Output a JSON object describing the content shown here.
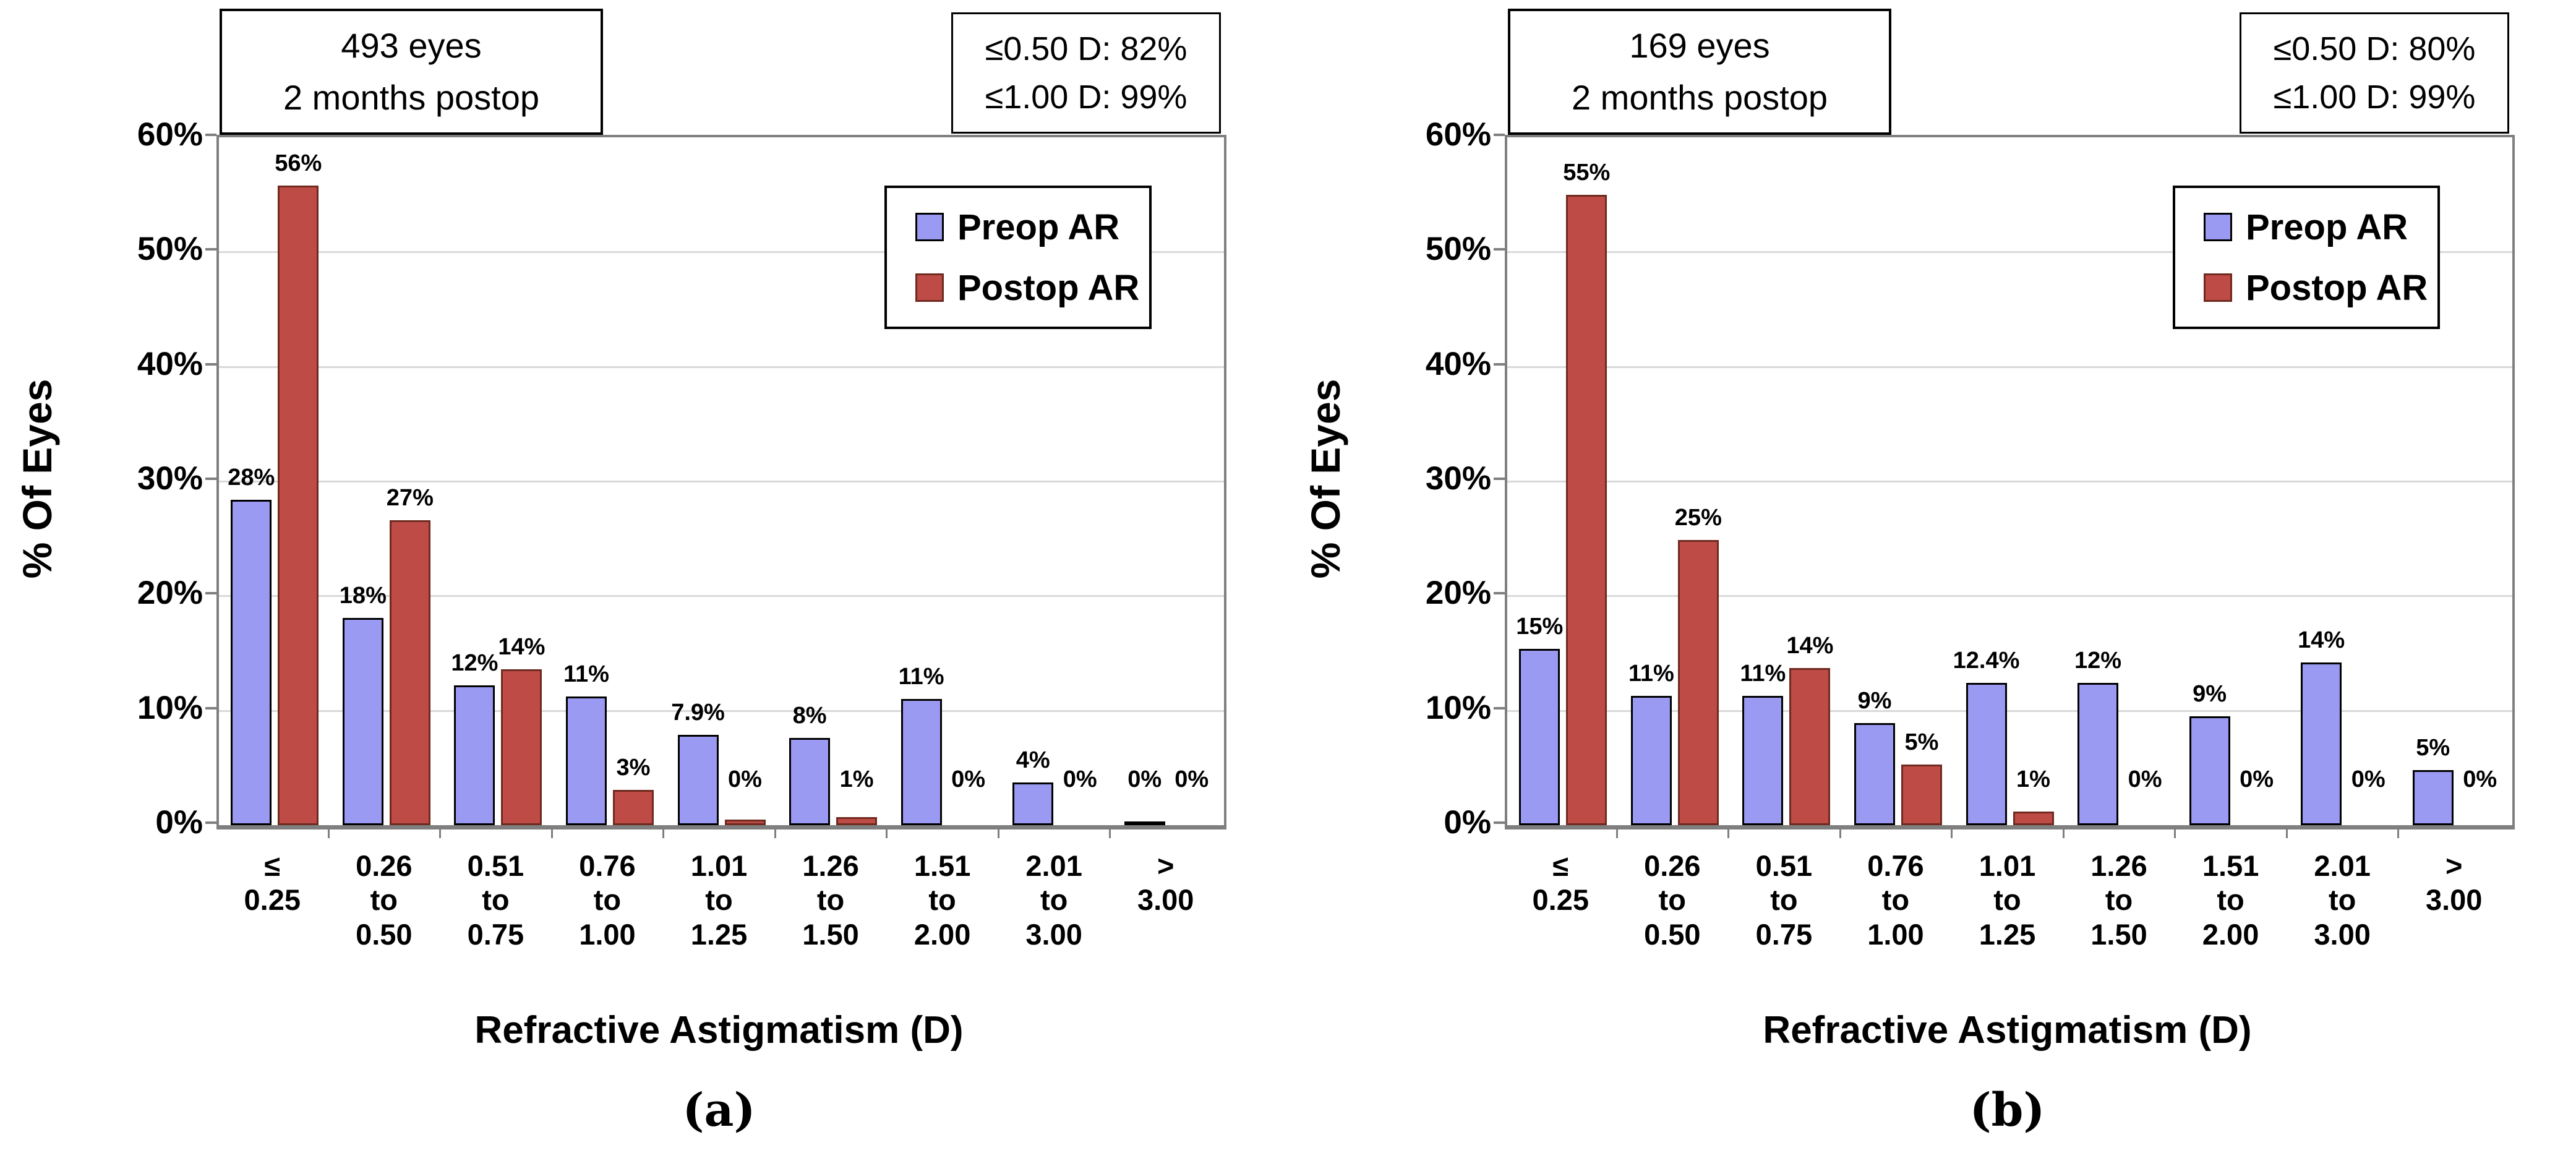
{
  "figure": {
    "y_axis_title": "% Of Eyes",
    "x_axis_title": "Refractive Astigmatism (D)",
    "legend": {
      "preop_label": "Preop AR",
      "postop_label": "Postop AR"
    },
    "colors": {
      "preop_fill": "#9a9af2",
      "preop_border": "#000000",
      "postop_fill": "#bf4b47",
      "postop_border": "#6e2a1f",
      "plot_border": "#7f7f7f",
      "gridline": "#d9d9d9"
    },
    "y_ticks": [
      {
        "value": 0,
        "label": "0%"
      },
      {
        "value": 10,
        "label": "10%"
      },
      {
        "value": 20,
        "label": "20%"
      },
      {
        "value": 30,
        "label": "30%"
      },
      {
        "value": 40,
        "label": "40%"
      },
      {
        "value": 50,
        "label": "50%"
      },
      {
        "value": 60,
        "label": "60%"
      }
    ]
  },
  "chart_data": [
    {
      "type": "bar",
      "panel": "a",
      "caption": "(a)",
      "title_box": [
        "493 eyes",
        "2 months postop"
      ],
      "stats_box": [
        "≤0.50 D: 82%",
        "≤1.00 D: 99%"
      ],
      "xlabel": "Refractive Astigmatism (D)",
      "ylabel": "% Of Eyes",
      "ylim": [
        0,
        60
      ],
      "grid": true,
      "legend_position": "top-right",
      "categories": [
        "≤ 0.25",
        "0.26 to 0.50",
        "0.51 to 0.75",
        "0.76 to 1.00",
        "1.01 to 1.25",
        "1.26 to 1.50",
        "1.51 to 2.00",
        "2.01 to 3.00",
        "> 3.00"
      ],
      "category_lines": [
        [
          "≤",
          "0.25"
        ],
        [
          "0.26",
          "to",
          "0.50"
        ],
        [
          "0.51",
          "to",
          "0.75"
        ],
        [
          "0.76",
          "to",
          "1.00"
        ],
        [
          "1.01",
          "to",
          "1.25"
        ],
        [
          "1.26",
          "to",
          "1.50"
        ],
        [
          "1.51",
          "to",
          "2.00"
        ],
        [
          "2.01",
          "to",
          "3.00"
        ],
        [
          ">",
          "3.00"
        ]
      ],
      "series": [
        {
          "name": "Preop AR",
          "values": [
            28.4,
            18.1,
            12.2,
            11.2,
            7.9,
            7.6,
            11.0,
            3.7,
            0.3
          ],
          "labels": [
            "28%",
            "18%",
            "12%",
            "11%",
            "7.9%",
            "8%",
            "11%",
            "4%",
            "0%"
          ]
        },
        {
          "name": "Postop AR",
          "values": [
            55.8,
            26.6,
            13.6,
            3.1,
            0.5,
            0.7,
            0,
            0,
            0
          ],
          "labels": [
            "56%",
            "27%",
            "14%",
            "3%",
            "0%",
            "1%",
            "0%",
            "0%",
            "0%"
          ]
        }
      ]
    },
    {
      "type": "bar",
      "panel": "b",
      "caption": "(b)",
      "title_box": [
        "169 eyes",
        "2 months postop"
      ],
      "stats_box": [
        "≤0.50 D: 80%",
        "≤1.00 D: 99%"
      ],
      "xlabel": "Refractive Astigmatism (D)",
      "ylabel": "% Of Eyes",
      "ylim": [
        0,
        60
      ],
      "grid": true,
      "legend_position": "top-right",
      "categories": [
        "≤ 0.25",
        "0.26 to 0.50",
        "0.51 to 0.75",
        "0.76 to 1.00",
        "1.01 to 1.25",
        "1.26 to 1.50",
        "1.51 to 2.00",
        "2.01 to 3.00",
        "> 3.00"
      ],
      "category_lines": [
        [
          "≤",
          "0.25"
        ],
        [
          "0.26",
          "to",
          "0.50"
        ],
        [
          "0.51",
          "to",
          "0.75"
        ],
        [
          "0.76",
          "to",
          "1.00"
        ],
        [
          "1.01",
          "to",
          "1.25"
        ],
        [
          "1.26",
          "to",
          "1.50"
        ],
        [
          "1.51",
          "to",
          "2.00"
        ],
        [
          "2.01",
          "to",
          "3.00"
        ],
        [
          ">",
          "3.00"
        ]
      ],
      "series": [
        {
          "name": "Preop AR",
          "values": [
            15.4,
            11.3,
            11.3,
            8.9,
            12.4,
            12.4,
            9.5,
            14.2,
            4.8
          ],
          "labels": [
            "15%",
            "11%",
            "11%",
            "9%",
            "12.4%",
            "12%",
            "9%",
            "14%",
            "5%"
          ]
        },
        {
          "name": "Postop AR",
          "values": [
            55.0,
            24.9,
            13.7,
            5.3,
            1.2,
            0,
            0,
            0,
            0
          ],
          "labels": [
            "55%",
            "25%",
            "14%",
            "5%",
            "1%",
            "0%",
            "0%",
            "0%",
            "0%"
          ]
        }
      ]
    }
  ]
}
